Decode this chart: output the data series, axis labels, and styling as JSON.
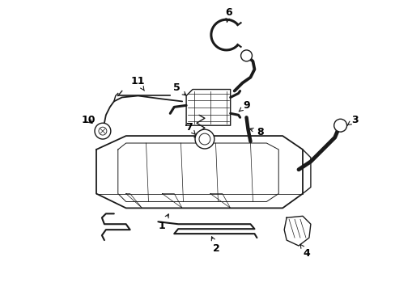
{
  "bg_color": "#ffffff",
  "line_color": "#1a1a1a",
  "text_color": "#000000",
  "fig_width": 4.89,
  "fig_height": 3.6,
  "dpi": 100,
  "lw": 1.0,
  "lw_thick": 2.2,
  "lw_hose": 3.5
}
